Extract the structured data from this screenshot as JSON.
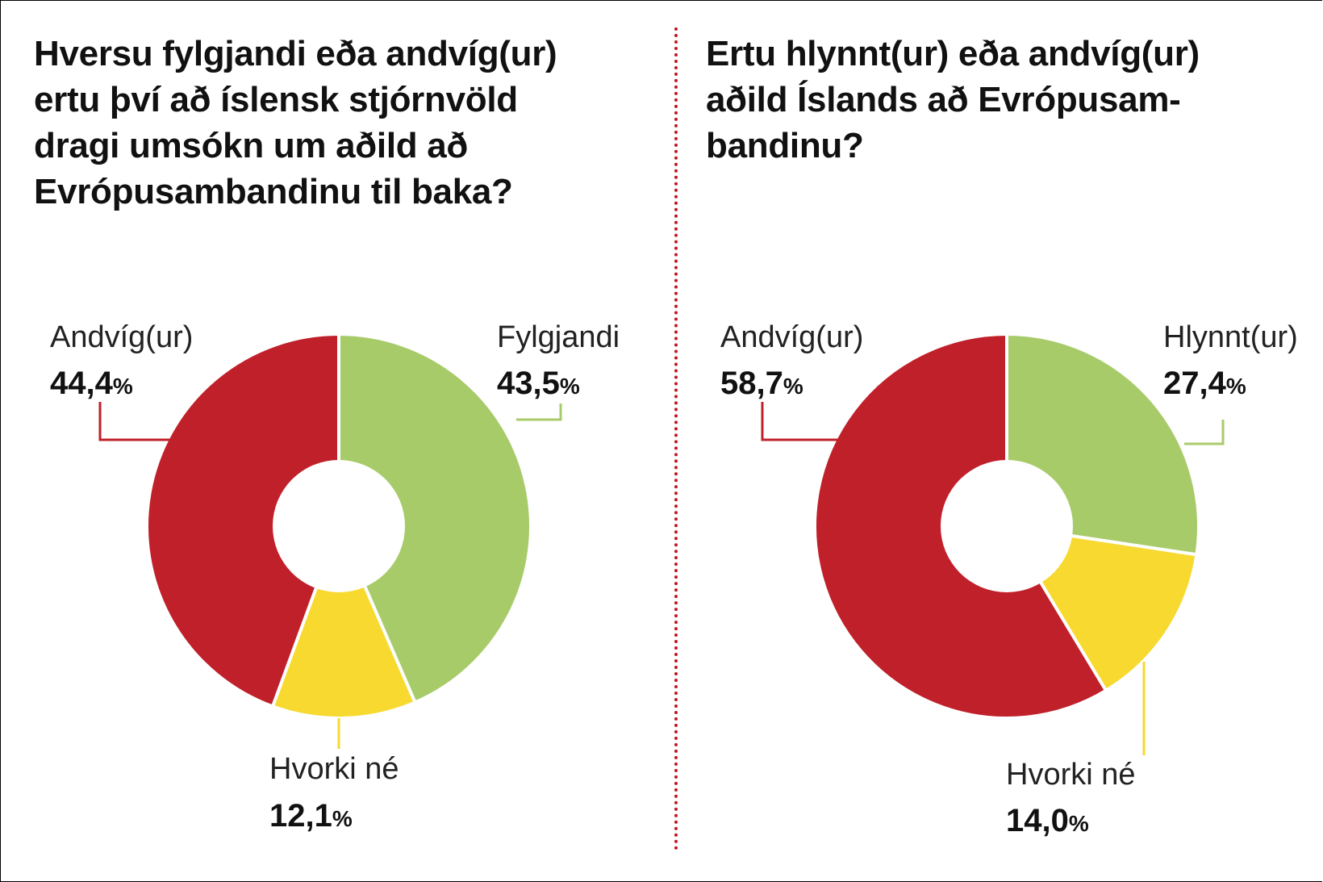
{
  "colors": {
    "andvig": "#c0202a",
    "fylgjandi": "#a8cb6a",
    "hvorki": "#f7d92f",
    "divider": "#c4151c"
  },
  "chart_data": [
    {
      "type": "pie",
      "title_lines": [
        "Hversu fylgjandi eða andvíg(ur)",
        "ertu því að íslensk stjórnvöld",
        "dragi umsókn um aðild að",
        "Evrópusambandinu til baka?"
      ],
      "slices": [
        {
          "label": "Fylgjandi",
          "value": 43.5,
          "value_text": "43,5",
          "color_key": "fylgjandi"
        },
        {
          "label": "Hvorki né",
          "value": 12.1,
          "value_text": "12,1",
          "color_key": "hvorki"
        },
        {
          "label": "Andvíg(ur)",
          "value": 44.4,
          "value_text": "44,4",
          "color_key": "andvig"
        }
      ],
      "percent_sign": "%"
    },
    {
      "type": "pie",
      "title_lines": [
        "Ertu hlynnt(ur) eða andvíg(ur)",
        "aðild Íslands að Evrópusam-",
        "bandinu?"
      ],
      "slices": [
        {
          "label": "Hlynnt(ur)",
          "value": 27.4,
          "value_text": "27,4",
          "color_key": "fylgjandi"
        },
        {
          "label": "Hvorki né",
          "value": 14.0,
          "value_text": "14,0",
          "color_key": "hvorki"
        },
        {
          "label": "Andvíg(ur)",
          "value": 58.7,
          "value_text": "58,7",
          "color_key": "andvig"
        }
      ],
      "percent_sign": "%"
    }
  ]
}
